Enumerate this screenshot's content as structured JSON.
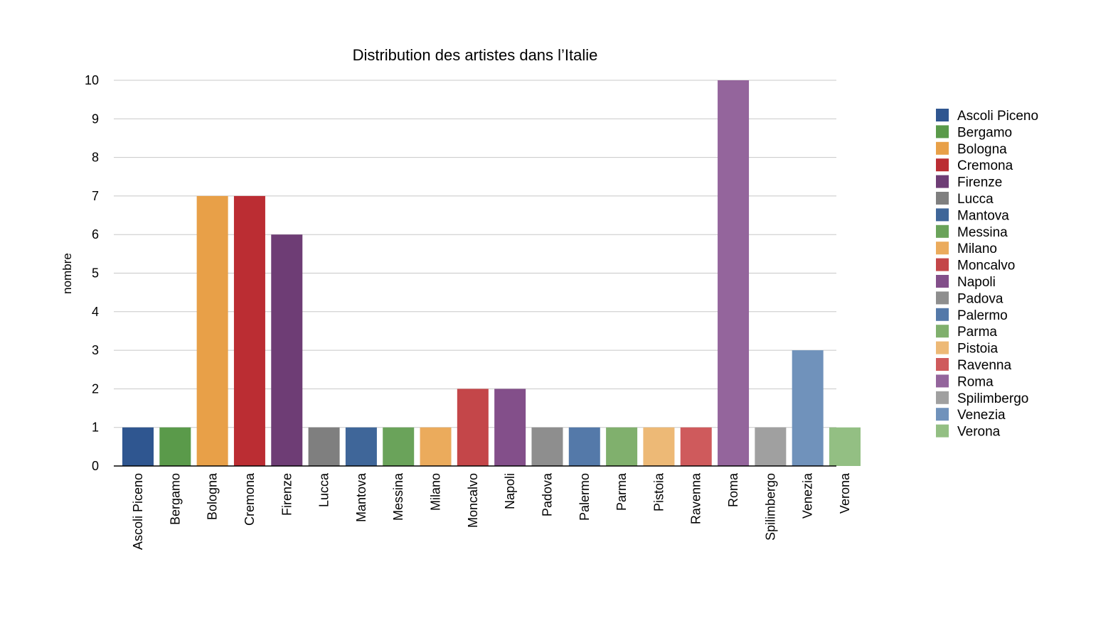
{
  "chart_data": {
    "type": "bar",
    "title": "Distribution des artistes dans l’Italie",
    "xlabel": "",
    "ylabel": "nombre",
    "ylim": [
      0,
      10
    ],
    "yticks": [
      0,
      1,
      2,
      3,
      4,
      5,
      6,
      7,
      8,
      9,
      10
    ],
    "grid": true,
    "legend_position": "right",
    "categories": [
      "Ascoli Piceno",
      "Bergamo",
      "Bologna",
      "Cremona",
      "Firenze",
      "Lucca",
      "Mantova",
      "Messina",
      "Milano",
      "Moncalvo",
      "Napoli",
      "Padova",
      "Palermo",
      "Parma",
      "Pistoia",
      "Ravenna",
      "Roma",
      "Spilimbergo",
      "Venezia",
      "Verona"
    ],
    "values": [
      1,
      1,
      7,
      7,
      6,
      1,
      1,
      1,
      1,
      2,
      2,
      1,
      1,
      1,
      1,
      1,
      10,
      1,
      3,
      1
    ],
    "colors": [
      "#2f5690",
      "#5a9a4a",
      "#e8a048",
      "#bb2d33",
      "#6e3d75",
      "#7f7f7f",
      "#3f6699",
      "#6aa35a",
      "#ebab5c",
      "#c44649",
      "#834f8a",
      "#8e8e8e",
      "#5479a9",
      "#80b06d",
      "#edb976",
      "#cf5a5c",
      "#94659c",
      "#a0a0a0",
      "#7092bb",
      "#93bf83"
    ]
  }
}
